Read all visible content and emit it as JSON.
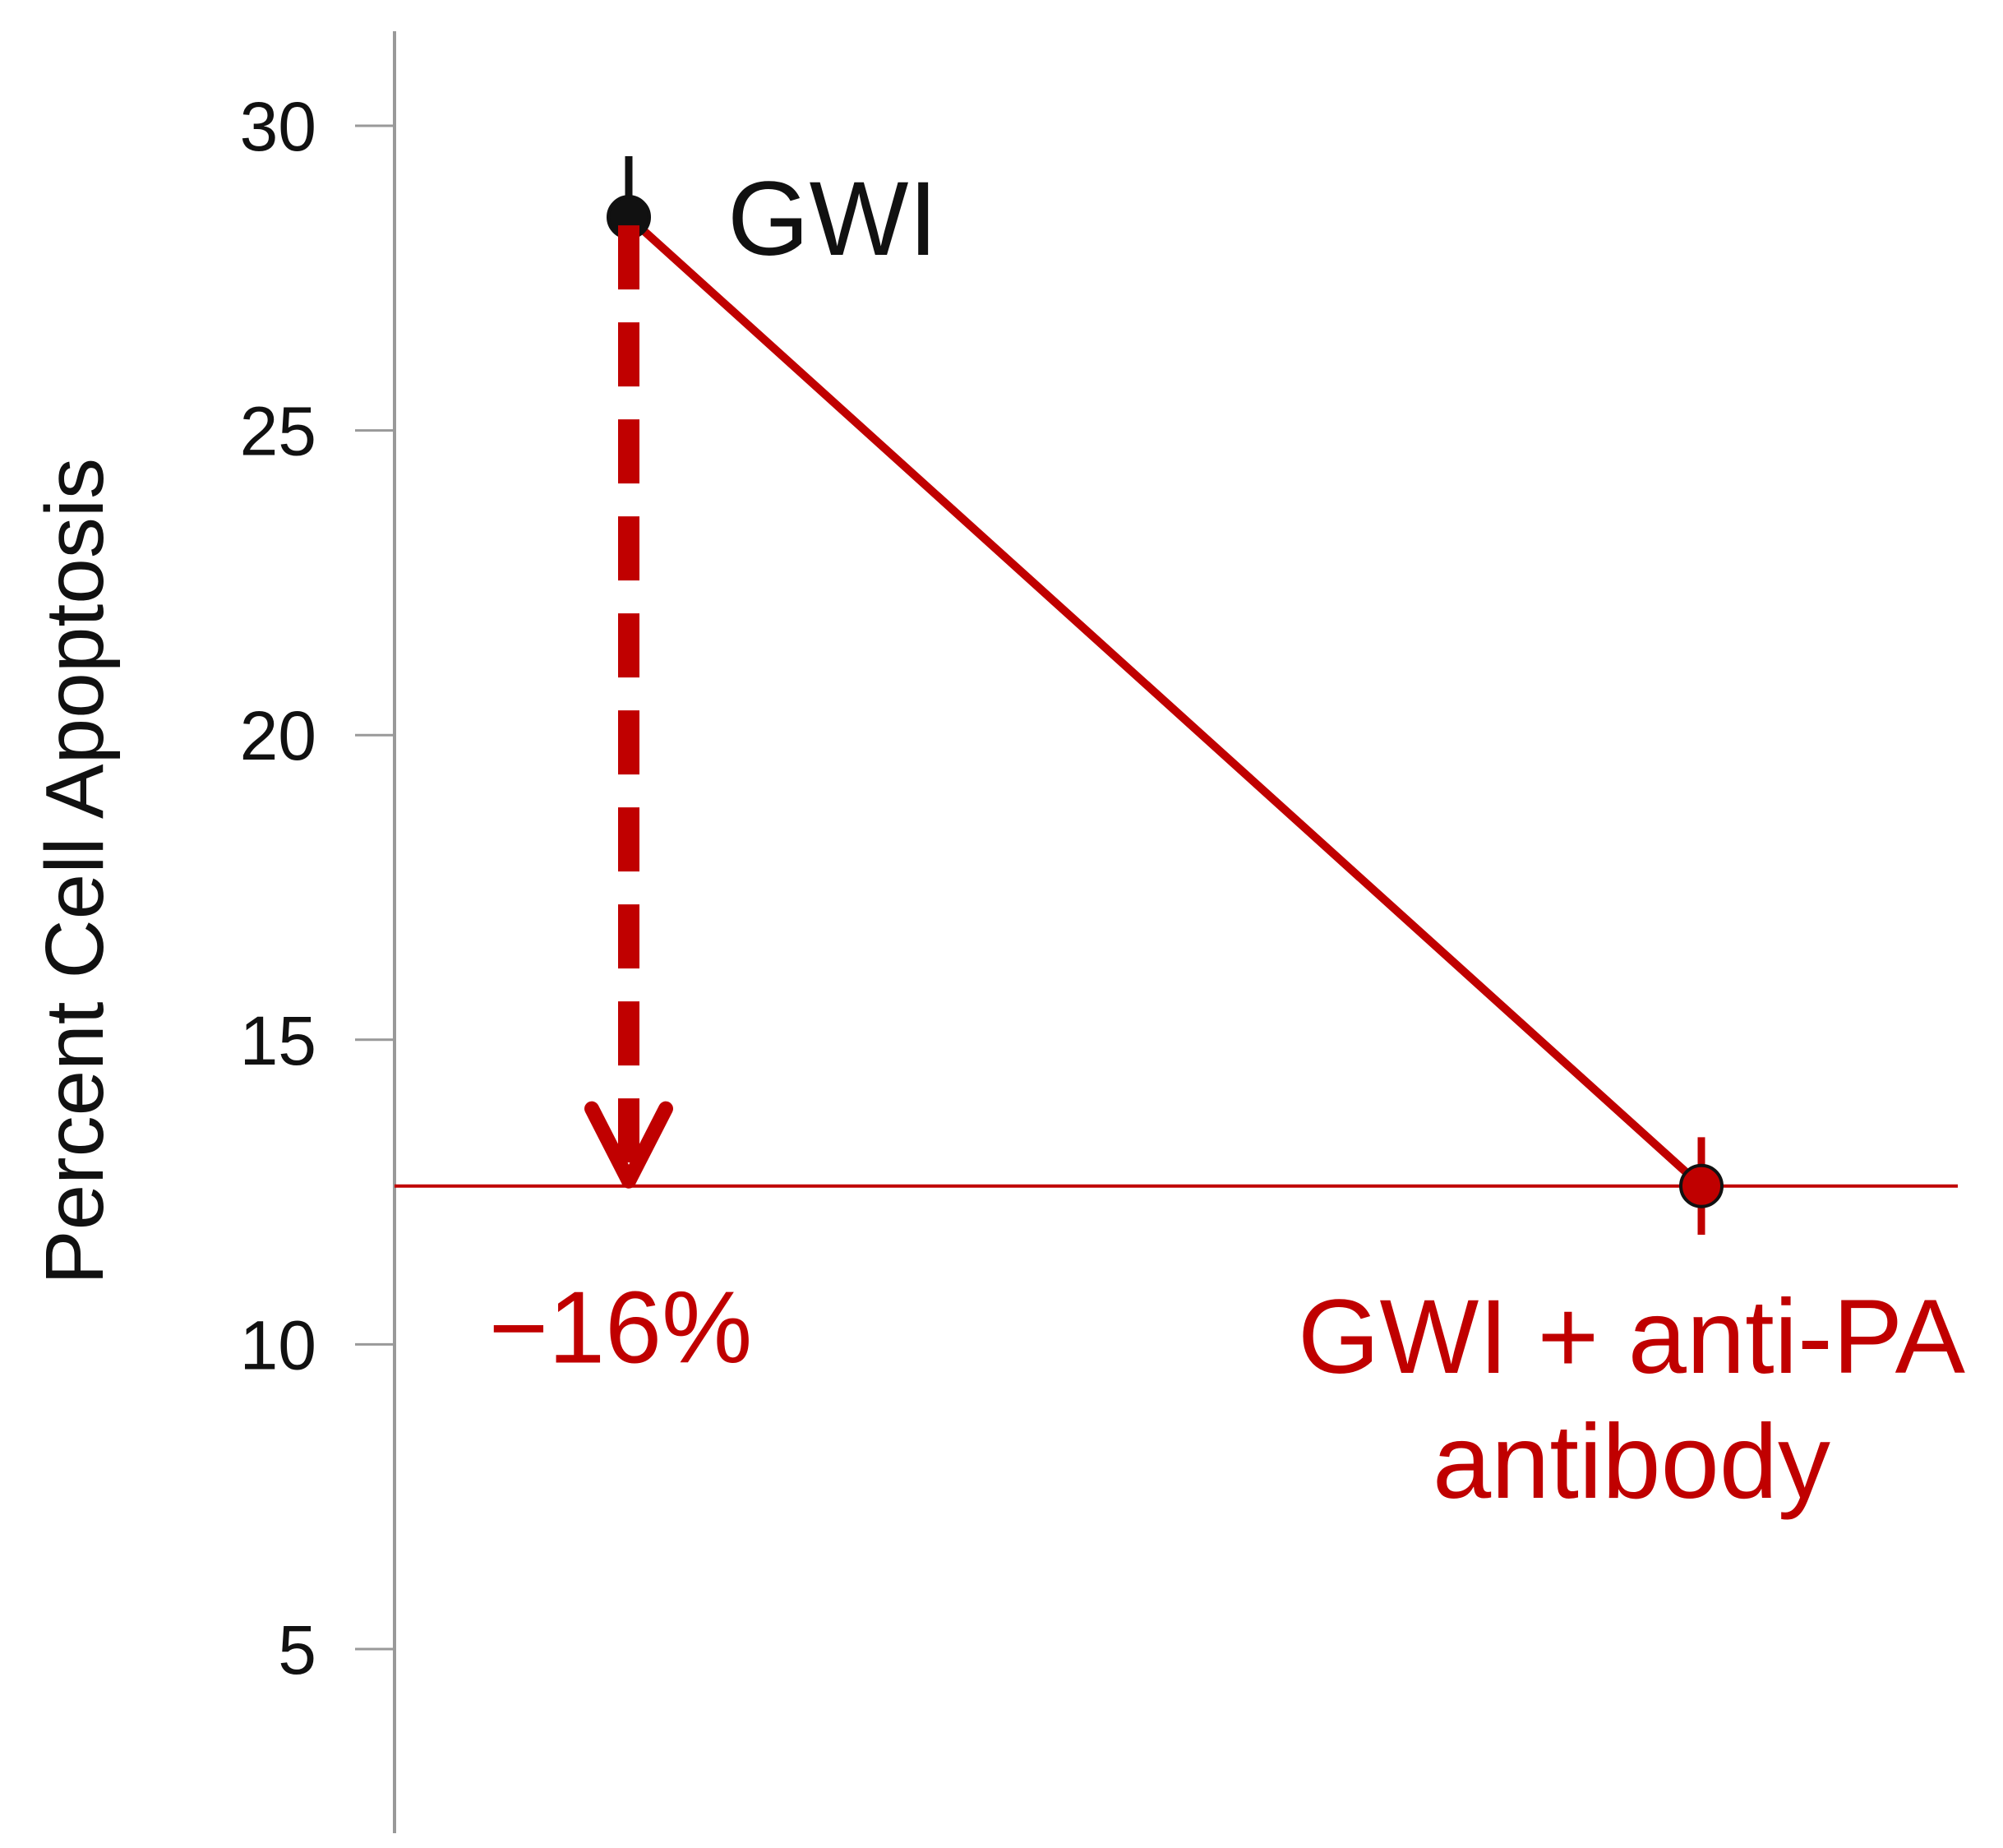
{
  "chart_data": {
    "type": "line",
    "title": "",
    "xlabel": "",
    "ylabel": "Percent Cell Apoptosis",
    "ylim": [
      2,
      32
    ],
    "yticks": [
      5,
      10,
      15,
      20,
      25,
      30
    ],
    "grid": false,
    "legend": "none",
    "points": [
      {
        "label": "GWI",
        "x": 0,
        "y": 28.5,
        "error": 1.0,
        "color": "#111111"
      },
      {
        "label_lines": [
          "GWI + anti-PA",
          "antibody"
        ],
        "x": 1,
        "y": 12.6,
        "error": 0.8,
        "color": "#c00000"
      }
    ],
    "reference_line": {
      "y": 12.6,
      "color": "#c00000"
    },
    "change_annotation": {
      "text": "−16%",
      "from_y": 28.5,
      "to_y": 12.6,
      "color": "#c00000"
    },
    "colors": {
      "accent": "#c00000",
      "axis": "#999999",
      "text": "#111111"
    }
  }
}
